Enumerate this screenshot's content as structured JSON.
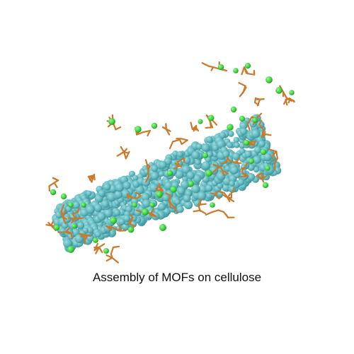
{
  "caption": "Assembly of MOFs on cellulose",
  "colors": {
    "background": "#ffffff",
    "cellulose_fiber": "#5fb8be",
    "cellulose_shadow": "#3e8f96",
    "linker_molecules": "#c97a2c",
    "metal_nodes": "#33cc33",
    "caption_text": "#111111"
  },
  "figure": {
    "subject": "molecular-render",
    "components": [
      "cellulose-fiber",
      "organic-linker-molecules",
      "metal-ion-nodes"
    ]
  }
}
